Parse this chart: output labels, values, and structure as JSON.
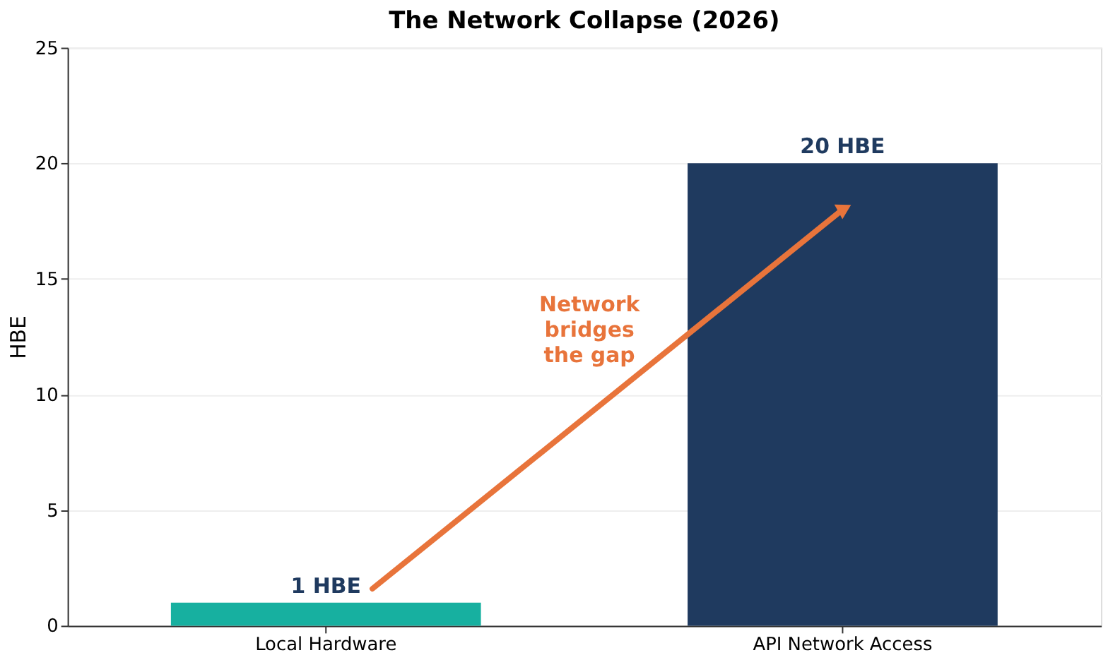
{
  "chart_data": {
    "type": "bar",
    "title": "The Network Collapse (2026)",
    "ylabel": "HBE",
    "categories": [
      "Local Hardware",
      "API Network Access"
    ],
    "values": [
      1,
      20
    ],
    "colors": [
      "#17b0a0",
      "#1f3a5f"
    ],
    "value_labels": [
      "1 HBE",
      "20 HBE"
    ],
    "annotations": [
      "Network\nbridges\nthe gap"
    ],
    "ylim": [
      0,
      25
    ],
    "yticks": [
      0,
      5,
      10,
      15,
      20,
      25
    ],
    "grid": "y"
  }
}
